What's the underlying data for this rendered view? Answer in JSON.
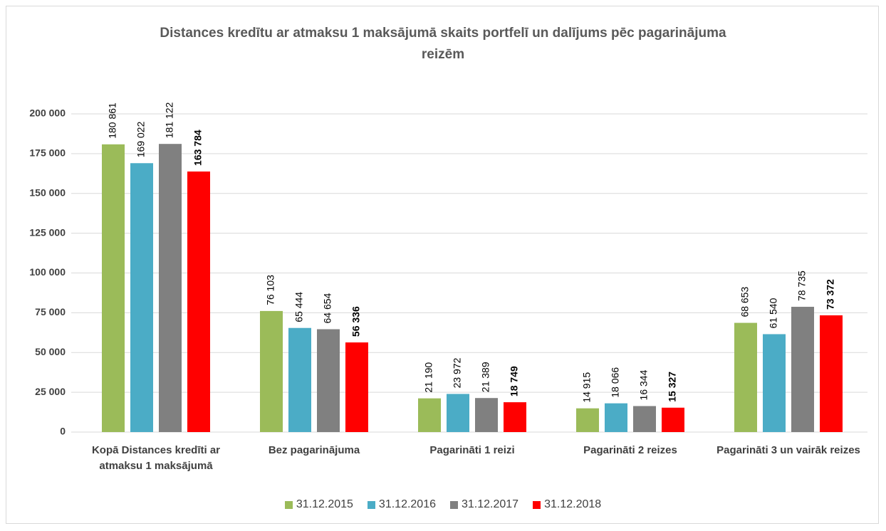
{
  "chart_data": {
    "type": "bar",
    "title": "Distances kredītu ar atmaksu 1 maksājumā skaits portfelī  un dalījums pēc pagarinājuma reizēm",
    "categories": [
      "Kopā Distances kredīti ar atmaksu 1 maksājumā",
      "Bez pagarinājuma",
      "Pagarināti 1 reizi",
      "Pagarināti 2 reizes",
      "Pagarināti 3 un vairāk reizes"
    ],
    "series": [
      {
        "name": "31.12.2015",
        "color": "#9bbb59",
        "values": [
          180861,
          76103,
          21190,
          14915,
          68653
        ],
        "value_labels": [
          "180 861",
          "76 103",
          "21 190",
          "14 915",
          "68 653"
        ]
      },
      {
        "name": "31.12.2016",
        "color": "#4bacc6",
        "values": [
          169022,
          65444,
          23972,
          18066,
          61540
        ],
        "value_labels": [
          "169 022",
          "65 444",
          "23 972",
          "18 066",
          "61 540"
        ]
      },
      {
        "name": "31.12.2017",
        "color": "#808080",
        "values": [
          181122,
          64654,
          21389,
          16344,
          78735
        ],
        "value_labels": [
          "181 122",
          "64 654",
          "21 389",
          "16 344",
          "78 735"
        ]
      },
      {
        "name": "31.12.2018",
        "color": "#ff0000",
        "values": [
          163784,
          56336,
          18749,
          15327,
          73372
        ],
        "value_labels": [
          "163 784",
          "56 336",
          "18 749",
          "15 327",
          "73 372"
        ],
        "bold_labels": true
      }
    ],
    "ylim": [
      0,
      200000
    ],
    "yticks": [
      0,
      {
        "value": 25000,
        "label": "25 000"
      },
      {
        "value": 50000,
        "label": "50 000"
      },
      {
        "value": 75000,
        "label": "75 000"
      },
      {
        "value": 100000,
        "label": "100 000"
      },
      {
        "value": 125000,
        "label": "125 000"
      },
      {
        "value": 150000,
        "label": "150 000"
      },
      {
        "value": 175000,
        "label": "175 000"
      },
      {
        "value": 200000,
        "label": "200 000"
      }
    ],
    "grid": true,
    "legend": "bottom"
  }
}
